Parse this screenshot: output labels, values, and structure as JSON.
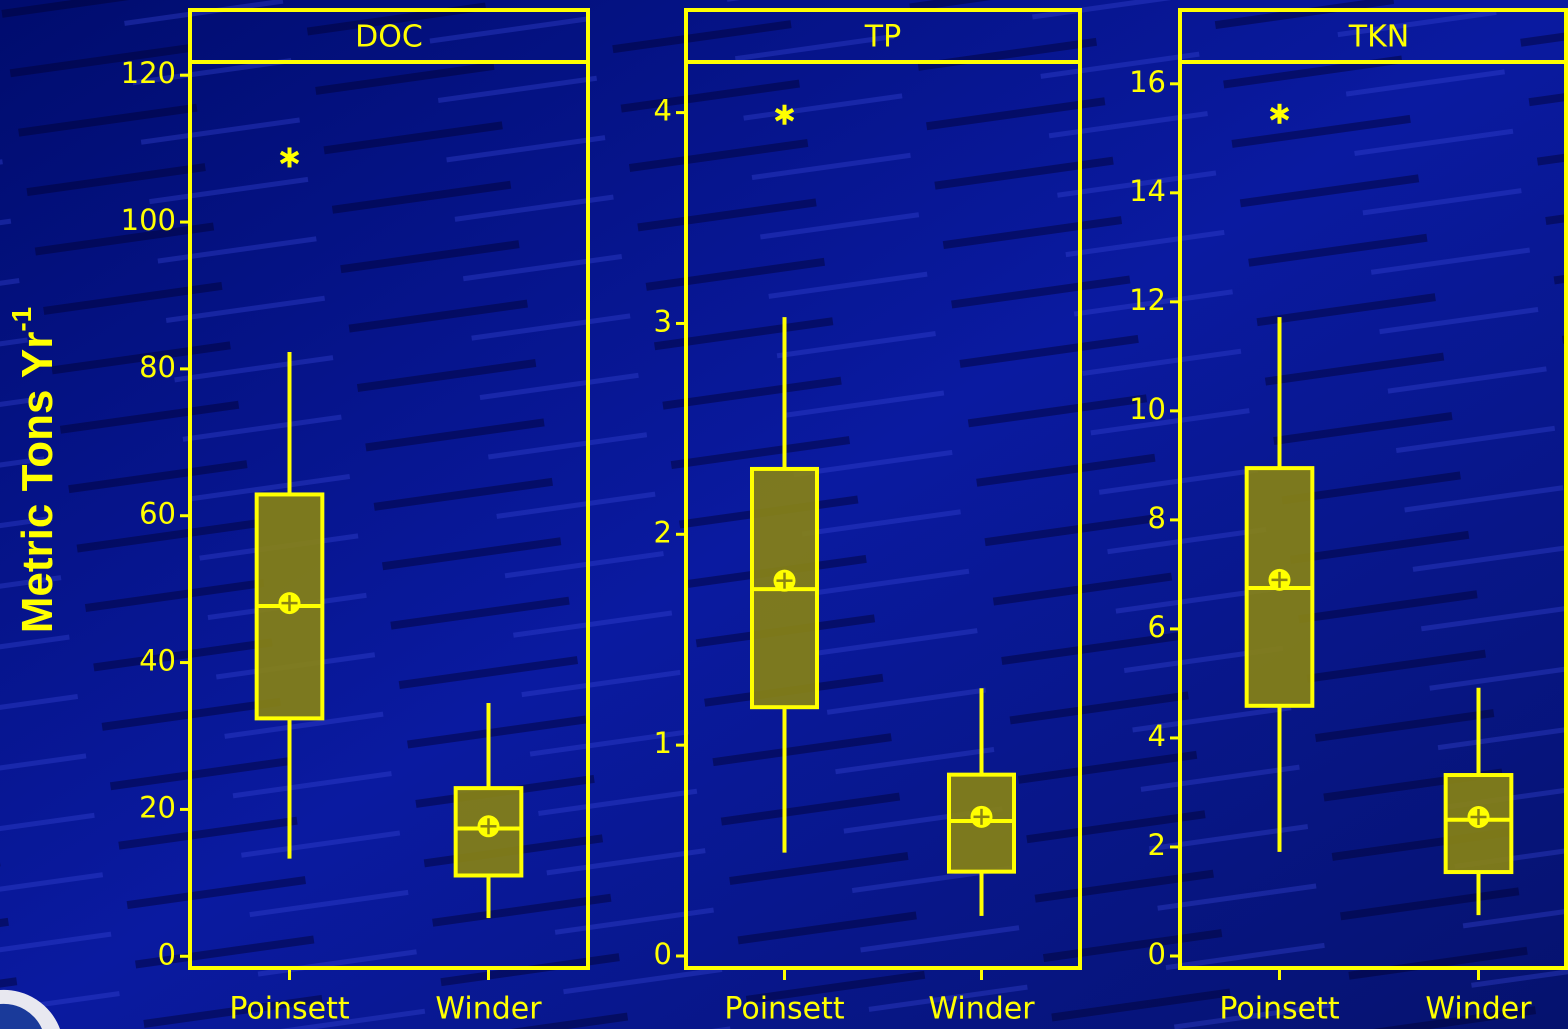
{
  "chart_data": [
    {
      "type": "box",
      "title": "DOC",
      "ylabel": "Metric Tons Yr",
      "ylabel_superscript": "-1",
      "categories": [
        "Poinsett",
        "Winder"
      ],
      "color": "#ffff00",
      "box_color": "#8a8412",
      "boxes": [
        {
          "whislo": 13.3,
          "q1": 32.4,
          "med": 47.7,
          "q3": 62.9,
          "whishi": 82.3,
          "mean": 48.1,
          "fliers": [
            108.8
          ]
        },
        {
          "whislo": 5.2,
          "q1": 11.0,
          "med": 17.4,
          "q3": 22.9,
          "whishi": 34.5,
          "mean": 17.7,
          "fliers": []
        }
      ],
      "ylim": [
        -1.6,
        121.8
      ],
      "yticks": [
        0,
        20,
        40,
        60,
        80,
        100,
        120
      ]
    },
    {
      "type": "box",
      "title": "TP",
      "categories": [
        "Poinsett",
        "Winder"
      ],
      "color": "#ffff00",
      "box_color": "#8a8412",
      "boxes": [
        {
          "whislo": 0.49,
          "q1": 1.18,
          "med": 1.74,
          "q3": 2.31,
          "whishi": 3.03,
          "mean": 1.78,
          "fliers": [
            3.99
          ]
        },
        {
          "whislo": 0.19,
          "q1": 0.4,
          "med": 0.64,
          "q3": 0.86,
          "whishi": 1.27,
          "mean": 0.66,
          "fliers": []
        }
      ],
      "ylim": [
        -0.057,
        4.24
      ],
      "yticks": [
        0,
        1,
        2,
        3,
        4
      ]
    },
    {
      "type": "box",
      "title": "TKN",
      "categories": [
        "Poinsett",
        "Winder"
      ],
      "color": "#ffff00",
      "box_color": "#8a8412",
      "boxes": [
        {
          "whislo": 1.91,
          "q1": 4.59,
          "med": 6.75,
          "q3": 8.95,
          "whishi": 11.72,
          "mean": 6.9,
          "fliers": [
            15.45
          ]
        },
        {
          "whislo": 0.75,
          "q1": 1.54,
          "med": 2.5,
          "q3": 3.32,
          "whishi": 4.92,
          "mean": 2.55,
          "fliers": []
        }
      ],
      "ylim": [
        -0.22,
        16.4
      ],
      "yticks": [
        0,
        2,
        4,
        6,
        8,
        10,
        12,
        14,
        16
      ]
    }
  ]
}
